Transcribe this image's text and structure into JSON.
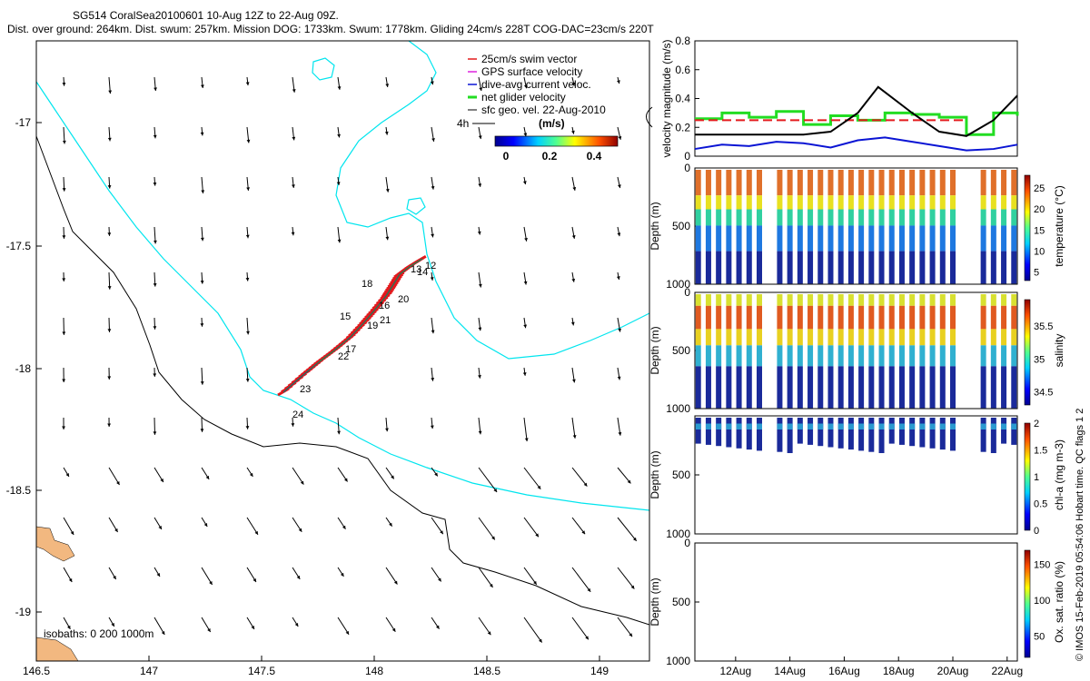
{
  "header": {
    "line1": "SG514 CoralSea20100601 10-Aug 12Z to 22-Aug 09Z.",
    "line2": "Dist. over ground: 264km. Dist. swum: 257km. Mission DOG: 1733km. Swum: 1778km. Gliding 24cm/s 228T COG-DAC=23cm/s 220T"
  },
  "map": {
    "lon_ticks": [
      "146.5",
      "147",
      "147.5",
      "148",
      "148.5",
      "149"
    ],
    "lat_ticks": [
      "-17",
      "-17.5",
      "-18",
      "-18.5",
      "-19"
    ],
    "legend": {
      "swim_vector": "25cm/s swim vector",
      "gps_velocity": "GPS surface velocity",
      "dac": "dive-avg current veloc.",
      "net_velocity": "net glider velocity",
      "sfc_geo": "sfc geo. vel. 22-Aug-2010",
      "scale_label": "4h",
      "cbar_title": "(m/s)",
      "cbar_ticks": [
        "0",
        "0.2",
        "0.4"
      ]
    },
    "isobaths": "isobaths: 0   200  1000m",
    "day_labels": [
      "12",
      "13",
      "14",
      "15",
      "16",
      "17",
      "18",
      "19",
      "20",
      "21",
      "22",
      "23",
      "24"
    ],
    "colors": {
      "coast_shallow": "#00e5ee",
      "coast_deep": "#000000",
      "land": "#f2b880",
      "track": "#e31a1c"
    }
  },
  "chart_data": [
    {
      "type": "line",
      "title": "",
      "ylabel": "velocity magnitude (m/s)",
      "ylim": [
        0,
        0.8
      ],
      "yticks": [
        "0",
        "0.2",
        "0.4",
        "0.6",
        "0.8"
      ],
      "x_axis": "date",
      "xlim": [
        "2010-08-10T12:00",
        "2010-08-22T09:00"
      ],
      "series": [
        {
          "legend": "dive-avg current veloc.",
          "color": "#0a14d4",
          "x": [
            "2010-08-10T12:00",
            "2010-08-11T12:00",
            "2010-08-12T12:00",
            "2010-08-13T12:00",
            "2010-08-14T12:00",
            "2010-08-15T12:00",
            "2010-08-16T12:00",
            "2010-08-17T12:00",
            "2010-08-18T12:00",
            "2010-08-19T12:00",
            "2010-08-20T12:00",
            "2010-08-21T12:00",
            "2010-08-22T09:00"
          ],
          "y": [
            0.05,
            0.08,
            0.07,
            0.1,
            0.09,
            0.06,
            0.11,
            0.13,
            0.1,
            0.07,
            0.04,
            0.05,
            0.08
          ]
        },
        {
          "legend": "net glider velocity",
          "color": "#22dd22",
          "x": [
            "2010-08-10T12:00",
            "2010-08-11T12:00",
            "2010-08-12T12:00",
            "2010-08-13T12:00",
            "2010-08-14T12:00",
            "2010-08-15T12:00",
            "2010-08-16T12:00",
            "2010-08-17T12:00",
            "2010-08-18T12:00",
            "2010-08-19T12:00",
            "2010-08-20T12:00",
            "2010-08-21T12:00",
            "2010-08-22T09:00"
          ],
          "y": [
            0.26,
            0.3,
            0.27,
            0.31,
            0.22,
            0.28,
            0.25,
            0.3,
            0.29,
            0.27,
            0.15,
            0.3,
            0.28
          ]
        },
        {
          "legend": "25cm/s swim vector",
          "color": "#e31a1c",
          "dashed": true,
          "x": [
            "2010-08-10T12:00",
            "2010-08-20T12:00"
          ],
          "y": [
            0.25,
            0.25
          ]
        },
        {
          "color": "#000000",
          "x": [
            "2010-08-10T12:00",
            "2010-08-12T12:00",
            "2010-08-14T12:00",
            "2010-08-15T12:00",
            "2010-08-16T12:00",
            "2010-08-17T06:00",
            "2010-08-18T12:00",
            "2010-08-19T12:00",
            "2010-08-20T12:00",
            "2010-08-21T12:00",
            "2010-08-22T09:00"
          ],
          "y": [
            0.15,
            0.15,
            0.15,
            0.17,
            0.3,
            0.48,
            0.3,
            0.17,
            0.14,
            0.25,
            0.42
          ]
        }
      ]
    },
    {
      "type": "scatter",
      "ylabel": "Depth (m)",
      "yticks": [
        "0",
        "500",
        "1000"
      ],
      "ylim": [
        1000,
        0
      ],
      "cbar_label": "temperature (°C)",
      "cbar_ticks": [
        "5",
        "10",
        "15",
        "20",
        "25"
      ],
      "clim": [
        3,
        28
      ]
    },
    {
      "type": "scatter",
      "ylabel": "Depth (m)",
      "yticks": [
        "0",
        "500",
        "1000"
      ],
      "ylim": [
        1000,
        0
      ],
      "cbar_label": "salinity",
      "cbar_ticks": [
        "34.5",
        "35",
        "35.5"
      ],
      "clim": [
        34.3,
        35.9
      ]
    },
    {
      "type": "scatter",
      "ylabel": "Depth (m)",
      "yticks": [
        "500",
        "1000"
      ],
      "ylim": [
        1000,
        0
      ],
      "cbar_label": "chl-a (mg m-3)",
      "cbar_ticks": [
        "0",
        "0.5",
        "1",
        "1.5",
        "2"
      ],
      "clim": [
        0,
        2
      ]
    },
    {
      "type": "scatter",
      "ylabel": "Depth (m)",
      "yticks": [
        "0",
        "500",
        "1000"
      ],
      "ylim": [
        1000,
        0
      ],
      "cbar_label": "Ox. sat. ratio (%)",
      "cbar_ticks": [
        "50",
        "100",
        "150"
      ],
      "clim": [
        20,
        170
      ]
    }
  ],
  "date_ticks": [
    "12Aug",
    "14Aug",
    "16Aug",
    "18Aug",
    "20Aug",
    "22Aug"
  ],
  "side_note": "© IMOS 15-Feb-2019 05:54:06 Hobart time. QC flags 1  2"
}
